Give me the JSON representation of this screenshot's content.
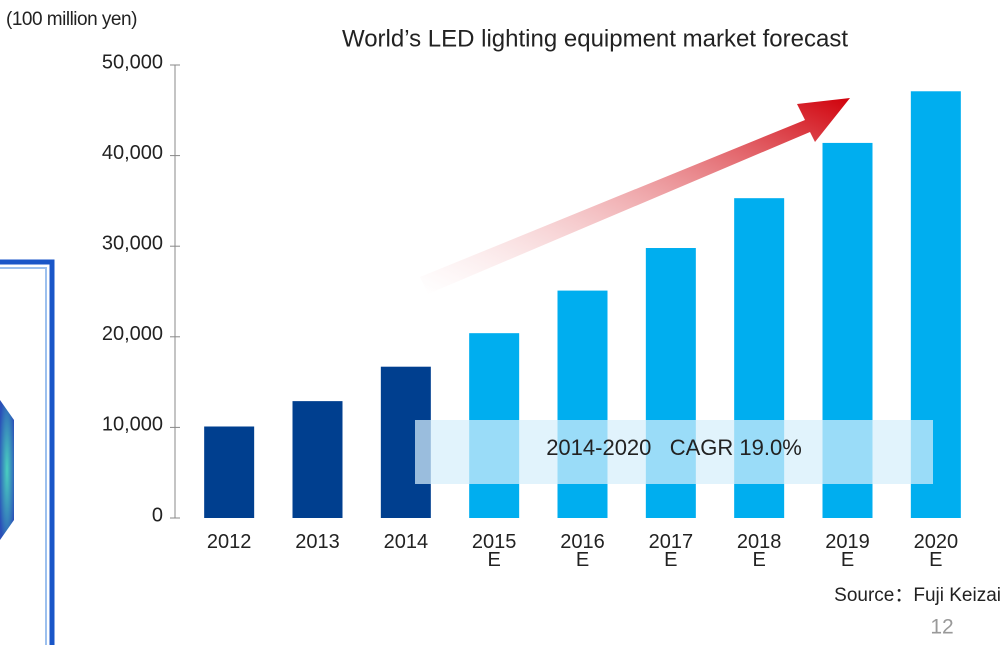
{
  "chart_data": {
    "type": "bar",
    "title": "World’s LED lighting equipment market forecast",
    "y_axis_label": "(100 million yen)",
    "categories": [
      "2012",
      "2013",
      "2014",
      "2015\nE",
      "2016\nE",
      "2017\nE",
      "2018\nE",
      "2019\nE",
      "2020\nE"
    ],
    "values": [
      10100,
      12900,
      16700,
      20400,
      25100,
      29800,
      35300,
      41400,
      47100
    ],
    "colors": [
      "#003f8f",
      "#003f8f",
      "#003f8f",
      "#00aeef",
      "#00aeef",
      "#00aeef",
      "#00aeef",
      "#00aeef",
      "#00aeef"
    ],
    "ylim": [
      0,
      50000
    ],
    "yticks": [
      0,
      {
        "value": 10000,
        "label": "10,000"
      },
      {
        "value": 20000,
        "label": "20,000"
      },
      {
        "value": 30000,
        "label": "30,000"
      },
      {
        "value": 40000,
        "label": "40,000"
      },
      {
        "value": 50000,
        "label": "50,000"
      }
    ],
    "annotation": "2014-2020   CAGR 19.0%",
    "source": "Source：Fuji Keizai",
    "page_number": "12"
  }
}
